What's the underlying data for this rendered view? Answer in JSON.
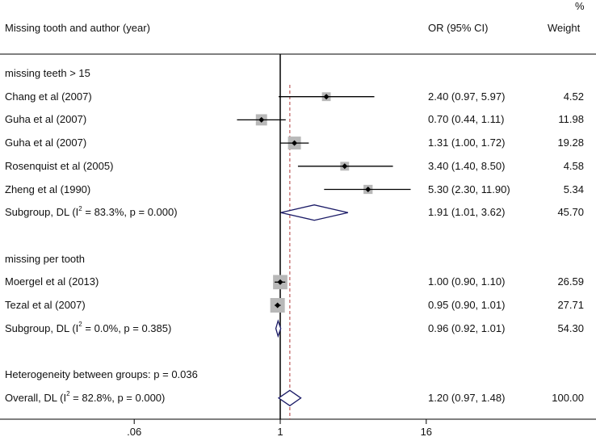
{
  "header": {
    "study_col": "Missing tooth and author (year)",
    "or_col": "OR (95% CI)",
    "weight_pct": "%",
    "weight_col": "Weight"
  },
  "heterogeneity_text": "Heterogeneity between groups: p = 0.036",
  "chart_data": {
    "type": "forest",
    "scale": "log",
    "null_value": 1,
    "overall_estimate": 1.2,
    "x_ticks": [
      {
        "value": 0.0625,
        "label": ".06"
      },
      {
        "value": 1,
        "label": "1"
      },
      {
        "value": 16,
        "label": "16"
      }
    ],
    "rows": [
      {
        "kind": "group",
        "label": "missing teeth > 15"
      },
      {
        "kind": "study",
        "label": "Chang et al (2007)",
        "or": 2.4,
        "lo": 0.97,
        "hi": 5.97,
        "ci_text": "2.40 (0.97, 5.97)",
        "weight": 4.52,
        "weight_text": "4.52"
      },
      {
        "kind": "study",
        "label": "Guha et al  (2007)",
        "or": 0.7,
        "lo": 0.44,
        "hi": 1.11,
        "ci_text": "0.70 (0.44, 1.11)",
        "weight": 11.98,
        "weight_text": "11.98"
      },
      {
        "kind": "study",
        "label": "Guha et al  (2007)",
        "or": 1.31,
        "lo": 1.0,
        "hi": 1.72,
        "ci_text": "1.31 (1.00, 1.72)",
        "weight": 19.28,
        "weight_text": "19.28"
      },
      {
        "kind": "study",
        "label": "Rosenquist et al (2005)",
        "or": 3.4,
        "lo": 1.4,
        "hi": 8.5,
        "ci_text": "3.40 (1.40, 8.50)",
        "weight": 4.58,
        "weight_text": "4.58"
      },
      {
        "kind": "study",
        "label": "Zheng et al (1990)",
        "or": 5.3,
        "lo": 2.3,
        "hi": 11.9,
        "ci_text": "5.30 (2.30, 11.90)",
        "weight": 5.34,
        "weight_text": "5.34"
      },
      {
        "kind": "subgroup",
        "label_pre": "Subgroup, DL (I",
        "label_post": " = 83.3%, p = 0.000)",
        "sup": "2",
        "or": 1.91,
        "lo": 1.01,
        "hi": 3.62,
        "ci_text": "1.91 (1.01, 3.62)",
        "weight": 45.7,
        "weight_text": "45.70"
      },
      {
        "kind": "blank"
      },
      {
        "kind": "group",
        "label": "missing per tooth"
      },
      {
        "kind": "study",
        "label": "Moergel et al (2013)",
        "or": 1.0,
        "lo": 0.9,
        "hi": 1.1,
        "ci_text": "1.00 (0.90, 1.10)",
        "weight": 26.59,
        "weight_text": "26.59"
      },
      {
        "kind": "study",
        "label": "Tezal et al (2007)",
        "or": 0.95,
        "lo": 0.9,
        "hi": 1.01,
        "ci_text": "0.95 (0.90, 1.01)",
        "weight": 27.71,
        "weight_text": "27.71"
      },
      {
        "kind": "subgroup",
        "label_pre": "Subgroup, DL (I",
        "label_post": " = 0.0%, p = 0.385)",
        "sup": "2",
        "or": 0.96,
        "lo": 0.92,
        "hi": 1.01,
        "ci_text": "0.96 (0.92, 1.01)",
        "weight": 54.3,
        "weight_text": "54.30"
      },
      {
        "kind": "blank"
      },
      {
        "kind": "note_heterogeneity"
      },
      {
        "kind": "overall",
        "label_pre": "Overall, DL (I",
        "label_post": " = 82.8%, p = 0.000)",
        "sup": "2",
        "or": 1.2,
        "lo": 0.97,
        "hi": 1.48,
        "ci_text": "1.20 (0.97, 1.48)",
        "weight": 100.0,
        "weight_text": "100.00"
      }
    ]
  },
  "colors": {
    "text": "#111111",
    "line": "#000000",
    "diamond": "#1a1a66",
    "box": "#b8b8b8",
    "overall_line": "#b03a3a"
  }
}
